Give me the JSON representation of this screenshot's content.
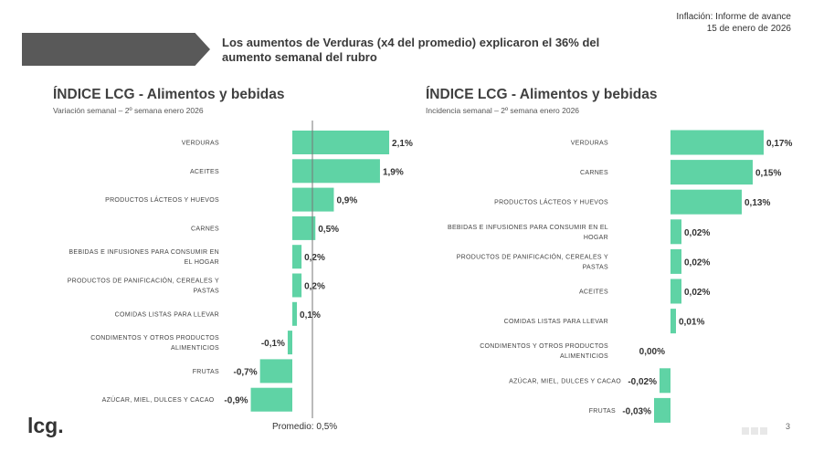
{
  "header": {
    "line1": "Inflación: Informe de avance",
    "line2": "15 de enero de 2026"
  },
  "headline": "Los aumentos de Verduras (x4 del promedio) explicaron el 36% del aumento semanal del rubro",
  "colors": {
    "bar": "#5fd3a5",
    "banner": "#595959",
    "line": "#777777"
  },
  "chart_data": [
    {
      "type": "bar",
      "orientation": "horizontal",
      "title": "ÍNDICE LCG - Alimentos y bebidas",
      "subtitle": "Variación semanal – 2º semana enero 2026",
      "categories": [
        "VERDURAS",
        "ACEITES",
        "PRODUCTOS LÁCTEOS Y HUEVOS",
        "CARNES",
        "BEBIDAS E INFUSIONES PARA CONSUMIR EN EL HOGAR",
        "PRODUCTOS DE PANIFICACIÓN, CEREALES Y PASTAS",
        "COMIDAS LISTAS PARA LLEVAR",
        "CONDIMENTOS Y OTROS PRODUCTOS ALIMENTICIOS",
        "FRUTAS",
        "AZÚCAR, MIEL, DULCES Y CACAO"
      ],
      "values": [
        2.1,
        1.9,
        0.9,
        0.5,
        0.2,
        0.2,
        0.1,
        -0.1,
        -0.7,
        -0.9
      ],
      "labels": [
        "2,1%",
        "1,9%",
        "0,9%",
        "0,5%",
        "0,2%",
        "0,2%",
        "0,1%",
        "-0,1%",
        "-0,7%",
        "-0,9%"
      ],
      "reference_line": {
        "value": 0.5,
        "label": "Promedio: 0,5%"
      }
    },
    {
      "type": "bar",
      "orientation": "horizontal",
      "title": "ÍNDICE LCG - Alimentos y bebidas",
      "subtitle": "Incidencia semanal – 2º semana enero 2026",
      "categories": [
        "VERDURAS",
        "CARNES",
        "PRODUCTOS LÁCTEOS Y HUEVOS",
        "BEBIDAS E INFUSIONES PARA CONSUMIR EN EL HOGAR",
        "PRODUCTOS DE PANIFICACIÓN, CEREALES Y PASTAS",
        "ACEITES",
        "COMIDAS LISTAS PARA LLEVAR",
        "CONDIMENTOS Y OTROS PRODUCTOS ALIMENTICIOS",
        "AZÚCAR, MIEL, DULCES Y CACAO",
        "FRUTAS"
      ],
      "values": [
        0.17,
        0.15,
        0.13,
        0.02,
        0.02,
        0.02,
        0.01,
        0.0,
        -0.02,
        -0.03
      ],
      "labels": [
        "0,17%",
        "0,15%",
        "0,13%",
        "0,02%",
        "0,02%",
        "0,02%",
        "0,01%",
        "0,00%",
        "-0,02%",
        "-0,03%"
      ]
    }
  ],
  "footer": {
    "logo": "lcg.",
    "page": "3"
  }
}
